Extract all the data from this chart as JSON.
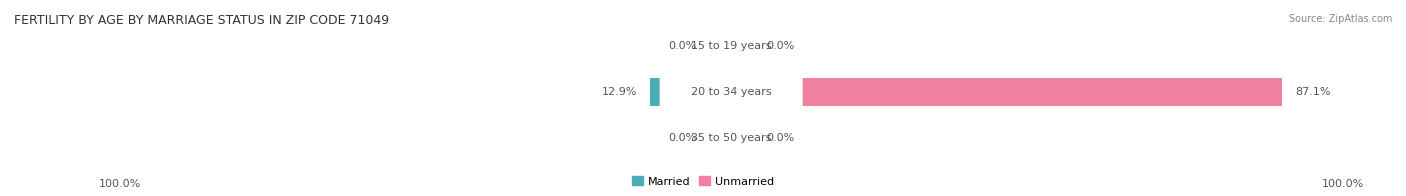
{
  "title": "FERTILITY BY AGE BY MARRIAGE STATUS IN ZIP CODE 71049",
  "source": "Source: ZipAtlas.com",
  "categories": [
    "15 to 19 years",
    "20 to 34 years",
    "35 to 50 years"
  ],
  "married_values": [
    0.0,
    12.9,
    0.0
  ],
  "unmarried_values": [
    0.0,
    87.1,
    0.0
  ],
  "married_color": "#4BADB5",
  "married_color_light": "#82CDD1",
  "unmarried_color": "#F080A0",
  "unmarried_color_light": "#F5AABF",
  "row_bg_color_odd": "#F0F0F0",
  "row_bg_color_even": "#E6E6E6",
  "left_label": "100.0%",
  "right_label": "100.0%",
  "title_fontsize": 9,
  "source_fontsize": 7,
  "value_fontsize": 8,
  "cat_fontsize": 8,
  "legend_fontsize": 8,
  "stub_size": 3.5,
  "total": 100
}
